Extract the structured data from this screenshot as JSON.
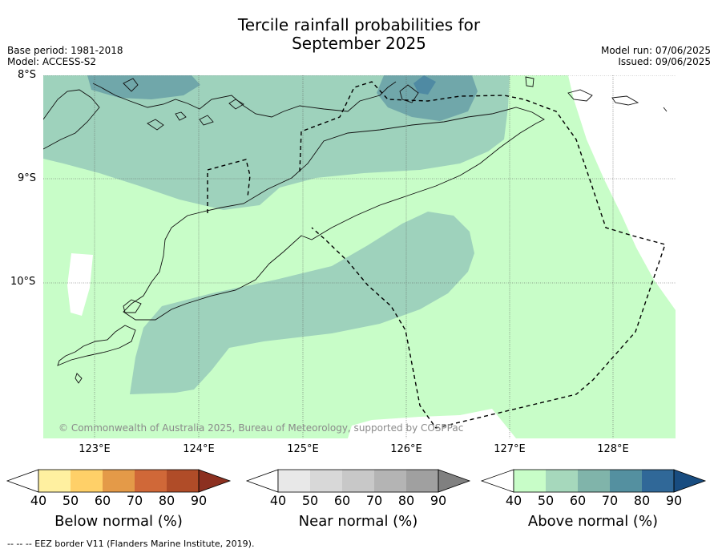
{
  "title": {
    "line1": "Tercile rainfall probabilities for",
    "line2": "September 2025"
  },
  "meta": {
    "base_period": "Base period: 1981-2018",
    "model": "Model: ACCESS-S2",
    "model_run": "Model run: 07/06/2025",
    "issued": "Issued: 09/06/2025"
  },
  "map": {
    "lat_labels": [
      "8°S",
      "9°S",
      "10°S"
    ],
    "lon_labels": [
      "123°E",
      "124°E",
      "125°E",
      "126°E",
      "127°E",
      "128°E"
    ],
    "lat_extent": [
      -11.5,
      -8.0
    ],
    "lon_extent": [
      122.5,
      128.6
    ],
    "copyright": "© Commonwealth of Australia 2025, Bureau of Meteorology, supported by COSPPac",
    "colors": {
      "background_above_40": "#c8fdc8",
      "above_50": "#9ed2bc",
      "above_60": "#70a7aa",
      "above_70": "#4f8aa3",
      "land": "#ffffff"
    }
  },
  "colorbars": [
    {
      "name": "below",
      "title": "Below normal (%)",
      "ticks": [
        "40",
        "50",
        "60",
        "70",
        "80",
        "90"
      ],
      "colors": [
        "#ffffff",
        "#fff0a0",
        "#ffd068",
        "#e49a48",
        "#d06838",
        "#b04c28",
        "#8c3020"
      ]
    },
    {
      "name": "near",
      "title": "Near normal (%)",
      "ticks": [
        "40",
        "50",
        "60",
        "70",
        "80",
        "90"
      ],
      "colors": [
        "#ffffff",
        "#e8e8e8",
        "#d8d8d8",
        "#c8c8c8",
        "#b4b4b4",
        "#a0a0a0",
        "#808080"
      ]
    },
    {
      "name": "above",
      "title": "Above normal (%)",
      "ticks": [
        "40",
        "50",
        "60",
        "70",
        "80",
        "90"
      ],
      "colors": [
        "#ffffff",
        "#c8fdc8",
        "#a6d8bc",
        "#80b4aa",
        "#5490a0",
        "#306898",
        "#184c80"
      ]
    }
  ],
  "footer": "--  --  -- EEZ border V11 (Flanders Marine Institute, 2019)."
}
